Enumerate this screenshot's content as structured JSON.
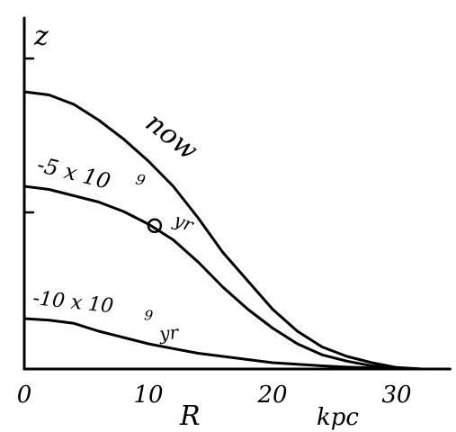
{
  "chart_data": {
    "type": "line",
    "title": "",
    "xlabel": "R",
    "xunit": "kpc",
    "ylabel": "z",
    "xlim": [
      0,
      33
    ],
    "ylim": [
      0,
      1.0
    ],
    "x_ticks": [
      {
        "value": 0,
        "label": "0"
      },
      {
        "value": 10,
        "label": "10"
      },
      {
        "value": 20,
        "label": "20"
      },
      {
        "value": 30,
        "label": "30"
      }
    ],
    "grid": false,
    "series": [
      {
        "name": "now",
        "x": [
          0,
          2,
          4,
          6,
          8,
          10,
          12,
          14,
          16,
          18,
          20,
          22,
          24,
          26,
          28,
          30,
          32
        ],
        "y": [
          0.88,
          0.87,
          0.84,
          0.79,
          0.73,
          0.66,
          0.58,
          0.48,
          0.37,
          0.28,
          0.19,
          0.12,
          0.07,
          0.04,
          0.02,
          0.005,
          0.0
        ]
      },
      {
        "name": "-5 x 10⁹ yr",
        "x": [
          0,
          2,
          4,
          6,
          8,
          10,
          12,
          14,
          16,
          18,
          20,
          22,
          24,
          26,
          28,
          30,
          32
        ],
        "y": [
          0.58,
          0.57,
          0.55,
          0.53,
          0.5,
          0.46,
          0.41,
          0.34,
          0.26,
          0.19,
          0.13,
          0.08,
          0.045,
          0.025,
          0.01,
          0.003,
          0.0
        ]
      },
      {
        "name": "-10 x 10⁹ yr",
        "x": [
          0,
          2,
          4,
          6,
          8,
          10,
          12,
          14,
          16,
          18,
          20,
          22,
          24,
          26,
          28,
          30,
          32
        ],
        "y": [
          0.16,
          0.155,
          0.145,
          0.12,
          0.1,
          0.08,
          0.065,
          0.05,
          0.04,
          0.03,
          0.02,
          0.015,
          0.01,
          0.006,
          0.003,
          0.001,
          0.0
        ]
      }
    ],
    "annotations": [
      {
        "text": "now",
        "series": 0
      },
      {
        "text": "-5 x 10",
        "series": 1
      },
      {
        "text": "9",
        "series": 1
      },
      {
        "text": "yr",
        "series": 1
      },
      {
        "text": "-10 x 10",
        "series": 2
      },
      {
        "text": "9",
        "series": 2
      },
      {
        "text": "yr",
        "series": 2
      }
    ],
    "marker": {
      "x": 10.5,
      "y": 0.455,
      "shape": "circle"
    }
  }
}
